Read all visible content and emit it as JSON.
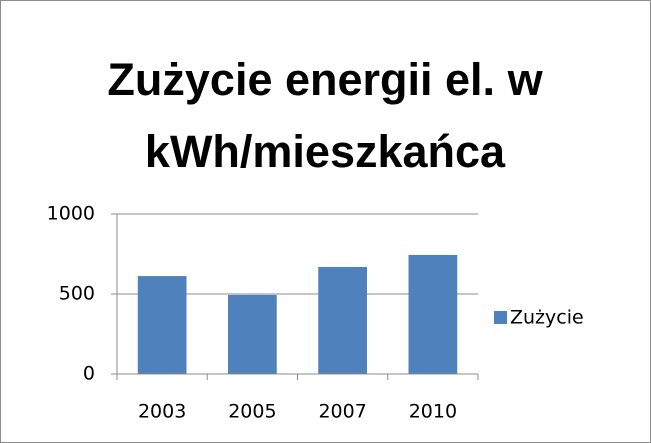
{
  "chart_data": {
    "type": "bar",
    "title": "Zużycie energii el. w kWh/mieszkańca",
    "categories": [
      "2003",
      "2005",
      "2007",
      "2010"
    ],
    "series": [
      {
        "name": "Zużycie",
        "color": "#4f81bd",
        "values": [
          612,
          494,
          669,
          744
        ]
      }
    ],
    "ylim": [
      0,
      1000
    ],
    "yticks": [
      0,
      500,
      1000
    ],
    "grid": true,
    "legend": "right"
  }
}
